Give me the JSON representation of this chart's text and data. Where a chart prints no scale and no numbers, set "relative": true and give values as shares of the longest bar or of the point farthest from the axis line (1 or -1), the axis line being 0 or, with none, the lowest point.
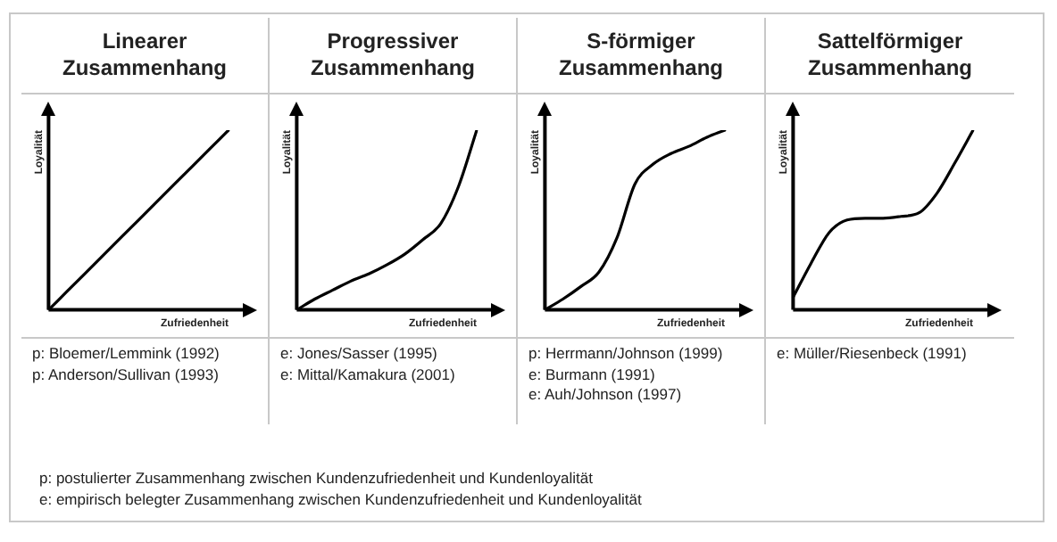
{
  "chart_data": [
    {
      "type": "line",
      "title": "Linearer Zusammenhang",
      "xlabel": "Zufriedenheit",
      "ylabel": "Loyalität",
      "relative": true,
      "grid": false,
      "color": "#000000",
      "categories": [
        null,
        null,
        null,
        null,
        null,
        null,
        null,
        null,
        null,
        null,
        null
      ],
      "values": [
        0,
        0.1,
        0.2,
        0.3,
        0.4,
        0.5,
        0.6,
        0.7,
        0.8,
        0.9,
        1
      ],
      "annotations": [
        "p: Bloemer/Lemmink (1992)",
        "p: Anderson/Sullivan (1993)"
      ]
    },
    {
      "type": "line",
      "title": "Progressiver Zusammenhang",
      "xlabel": "Zufriedenheit",
      "ylabel": "Loyalität",
      "relative": true,
      "grid": false,
      "color": "#000000",
      "categories": [
        null,
        null,
        null,
        null,
        null,
        null,
        null,
        null,
        null,
        null,
        null
      ],
      "values": [
        0,
        0.06,
        0.11,
        0.16,
        0.2,
        0.25,
        0.31,
        0.39,
        0.48,
        0.69,
        1
      ],
      "annotations": [
        "e: Jones/Sasser (1995)",
        "e: Mittal/Kamakura (2001)"
      ]
    },
    {
      "type": "line",
      "title": "S-förmiger Zusammenhang",
      "xlabel": "Zufriedenheit",
      "ylabel": "Loyalität",
      "relative": true,
      "grid": false,
      "color": "#000000",
      "categories": [
        null,
        null,
        null,
        null,
        null,
        null,
        null,
        null,
        null,
        null,
        null
      ],
      "values": [
        0,
        0.06,
        0.13,
        0.21,
        0.4,
        0.7,
        0.81,
        0.87,
        0.91,
        0.96,
        1
      ],
      "annotations": [
        "p: Herrmann/Johnson (1999)",
        "e: Burmann (1991)",
        "e: Auh/Johnson (1997)"
      ]
    },
    {
      "type": "line",
      "title": "Sattelförmiger Zusammenhang",
      "xlabel": "Zufriedenheit",
      "ylabel": "Loyalität",
      "relative": true,
      "grid": false,
      "color": "#000000",
      "categories": [
        null,
        null,
        null,
        null,
        null,
        null,
        null,
        null,
        null,
        null,
        null
      ],
      "values": [
        0.07,
        0.26,
        0.43,
        0.5,
        0.51,
        0.51,
        0.52,
        0.54,
        0.65,
        0.82,
        1
      ],
      "annotations": [
        "e: Müller/Riesenbeck (1991)"
      ]
    },
    {
      "type": "other",
      "annotations": [
        "p: postulierter Zusammenhang zwischen Kundenzufriedenheit und Kundenloyalität",
        "e: empirisch belegter Zusammenhang zwischen Kundenzufriedenheit und Kundenloyalität"
      ]
    }
  ]
}
